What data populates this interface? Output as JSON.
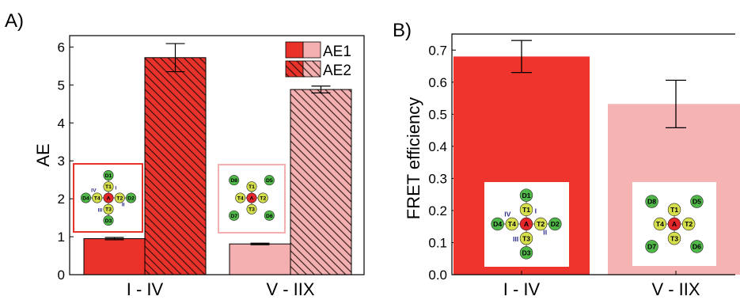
{
  "chart_data": [
    {
      "type": "bar",
      "panel_label": "A)",
      "ylabel": "AE",
      "categories": [
        "I - IV",
        "V - IIX"
      ],
      "series": [
        {
          "name": "AE1",
          "values": [
            0.95,
            0.81
          ],
          "errors": [
            0.03,
            0.02
          ],
          "colors": [
            "#e8322a",
            "#f4b0b0"
          ],
          "pattern": "solid"
        },
        {
          "name": "AE2",
          "values": [
            5.72,
            4.88
          ],
          "errors": [
            0.37,
            0.09
          ],
          "colors": [
            "#e8322a",
            "#f4b0b0"
          ],
          "pattern": "hatched"
        }
      ],
      "ylim": [
        0,
        6.3
      ],
      "yticks": [
        "0",
        "1",
        "2",
        "3",
        "4",
        "5",
        "6"
      ],
      "legend": {
        "placement": "top-right"
      },
      "grid": false
    },
    {
      "type": "bar",
      "panel_label": "B)",
      "ylabel": "FRET efficiency",
      "categories": [
        "I - IV",
        "V - IIX"
      ],
      "series": [
        {
          "values": [
            0.68,
            0.532
          ],
          "errors": [
            0.05,
            0.074
          ],
          "colors": [
            "#ee342c",
            "#f6b3b3"
          ]
        }
      ],
      "ylim": [
        0,
        0.75
      ],
      "yticks": [
        "0.0",
        "0.1",
        "0.2",
        "0.3",
        "0.4",
        "0.5",
        "0.6",
        "0.7"
      ],
      "grid": false
    }
  ],
  "schematics": {
    "cross": {
      "center": "A",
      "inner": [
        "T1",
        "T2",
        "T3",
        "T4"
      ],
      "outer": [
        "D1",
        "D2",
        "D3",
        "D4"
      ],
      "arms": [
        "I",
        "II",
        "III",
        "IV"
      ]
    },
    "square": {
      "center": "A",
      "inner": [
        "T1",
        "T2",
        "T3",
        "T4"
      ],
      "outer": [
        "D5",
        "D6",
        "D7",
        "D8"
      ]
    }
  },
  "colors": {
    "red": "#e8322a",
    "pink": "#f4b0b0",
    "node_green": "#4fb848",
    "node_yellow": "#d6e04c",
    "node_red": "#e2262a",
    "arm_label": "#2c2c8c"
  }
}
